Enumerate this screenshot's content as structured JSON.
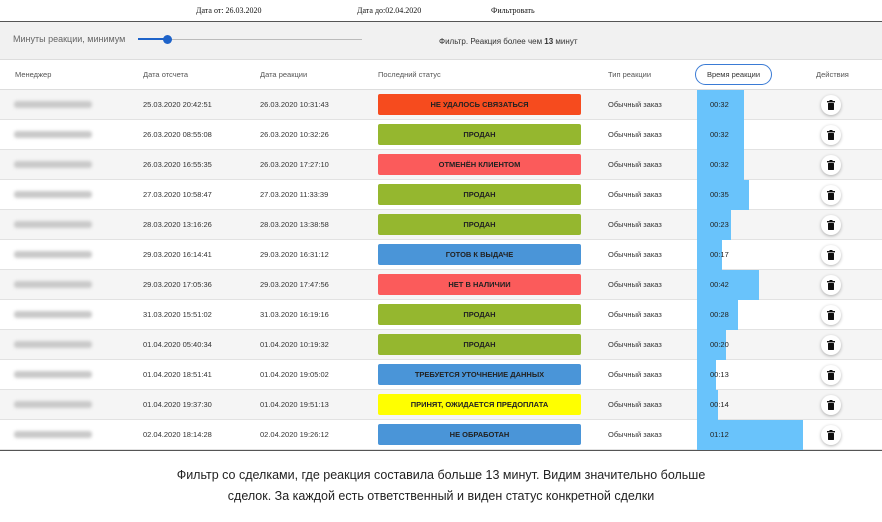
{
  "topbar": {
    "date_from": "Дата от: 26.03.2020",
    "date_to": "Дата до:02.04.2020",
    "filter_button": "Фильтровать"
  },
  "slider": {
    "label": "Минуты реакции, минимум",
    "value_fraction": 0.13
  },
  "filter_info": {
    "prefix": "Фильтр. Реакция более чем ",
    "value": "13",
    "suffix": " минут"
  },
  "headers": {
    "manager": "Менеджер",
    "report": "Дата отсчета",
    "reaction": "Дата реакции",
    "status": "Последний статус",
    "type": "Тип реакции",
    "time": "Время реакции",
    "actions": "Действия"
  },
  "colors": {
    "red_orange": "#f64b1e",
    "green": "#95b72f",
    "salmon": "#fb5b5b",
    "blue": "#4a95d8",
    "yellow": "#ffff00",
    "time_bar": "#69c3fb"
  },
  "rows": [
    {
      "manager": "Бабенко Константин",
      "report": "25.03.2020 20:42:51",
      "reaction": "26.03.2020 10:31:43",
      "status": "НЕ УДАЛОСЬ СВЯЗАТЬСЯ",
      "status_color": "#f64b1e",
      "type": "Обычный заказ",
      "time": "00:32",
      "minutes": 32
    },
    {
      "manager": "Бабенко Константин",
      "report": "26.03.2020 08:55:08",
      "reaction": "26.03.2020 10:32:26",
      "status": "ПРОДАН",
      "status_color": "#95b72f",
      "type": "Обычный заказ",
      "time": "00:32",
      "minutes": 32
    },
    {
      "manager": "Бабенко Константин",
      "report": "26.03.2020 16:55:35",
      "reaction": "26.03.2020 17:27:10",
      "status": "ОТМЕНЁН КЛИЕНТОМ",
      "status_color": "#fb5b5b",
      "type": "Обычный заказ",
      "time": "00:32",
      "minutes": 32
    },
    {
      "manager": "Покровский Тимофей",
      "report": "27.03.2020 10:58:47",
      "reaction": "27.03.2020 11:33:39",
      "status": "ПРОДАН",
      "status_color": "#95b72f",
      "type": "Обычный заказ",
      "time": "00:35",
      "minutes": 35
    },
    {
      "manager": "Бабенко Константин",
      "report": "28.03.2020 13:16:26",
      "reaction": "28.03.2020 13:38:58",
      "status": "ПРОДАН",
      "status_color": "#95b72f",
      "type": "Обычный заказ",
      "time": "00:23",
      "minutes": 23
    },
    {
      "manager": "Бабенко Константин",
      "report": "29.03.2020 16:14:41",
      "reaction": "29.03.2020 16:31:12",
      "status": "ГОТОВ К ВЫДАЧЕ",
      "status_color": "#4a95d8",
      "type": "Обычный заказ",
      "time": "00:17",
      "minutes": 17
    },
    {
      "manager": "Бабенко Константин",
      "report": "29.03.2020 17:05:36",
      "reaction": "29.03.2020 17:47:56",
      "status": "НЕТ В НАЛИЧИИ",
      "status_color": "#fb5b5b",
      "type": "Обычный заказ",
      "time": "00:42",
      "minutes": 42
    },
    {
      "manager": "Покровский Тимофей",
      "report": "31.03.2020 15:51:02",
      "reaction": "31.03.2020 16:19:16",
      "status": "ПРОДАН",
      "status_color": "#95b72f",
      "type": "Обычный заказ",
      "time": "00:28",
      "minutes": 28
    },
    {
      "manager": "Покровский Тимофей",
      "report": "01.04.2020 05:40:34",
      "reaction": "01.04.2020 10:19:32",
      "status": "ПРОДАН",
      "status_color": "#95b72f",
      "type": "Обычный заказ",
      "time": "00:20",
      "minutes": 20
    },
    {
      "manager": "Бабенко Константин",
      "report": "01.04.2020 18:51:41",
      "reaction": "01.04.2020 19:05:02",
      "status": "ТРЕБУЕТСЯ УТОЧНЕНИЕ ДАННЫХ",
      "status_color": "#4a95d8",
      "type": "Обычный заказ",
      "time": "00:13",
      "minutes": 13
    },
    {
      "manager": "Бабенко Константин",
      "report": "01.04.2020 19:37:30",
      "reaction": "01.04.2020 19:51:13",
      "status": "ПРИНЯТ, ОЖИДАЕТСЯ ПРЕДОПЛАТА",
      "status_color": "#ffff00",
      "type": "Обычный заказ",
      "time": "00:14",
      "minutes": 14
    },
    {
      "manager": "Покровский Тимофей",
      "report": "02.04.2020 18:14:28",
      "reaction": "02.04.2020 19:26:12",
      "status": "НЕ ОБРАБОТАН",
      "status_color": "#4a95d8",
      "type": "Обычный заказ",
      "time": "01:12",
      "minutes": 72
    }
  ],
  "caption": {
    "line1": "Фильтр со сделками, где реакция составила больше 13 минут. Видим значительно больше",
    "line2": "сделок. За каждой есть ответственный и виден статус конкретной сделки"
  }
}
